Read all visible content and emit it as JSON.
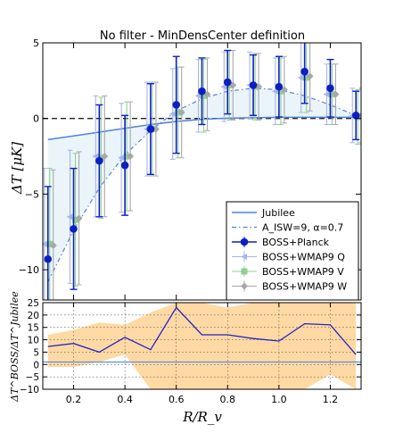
{
  "chart_data": [
    {
      "type": "line",
      "title": "No filter - MinDensCenter definition",
      "xlabel": "",
      "ylabel": "ΔT [μK]",
      "xlim": [
        0.08,
        1.32
      ],
      "ylim": [
        -12,
        5
      ],
      "xticks": [
        0.2,
        0.4,
        0.6,
        0.8,
        1.0,
        1.2
      ],
      "yticks": [
        -10,
        -5,
        0,
        5
      ],
      "ytick_labels": [
        "−10",
        "−5",
        "0",
        "5"
      ],
      "x": [
        0.1,
        0.2,
        0.3,
        0.4,
        0.5,
        0.6,
        0.7,
        0.8,
        0.9,
        1.0,
        1.1,
        1.2,
        1.3
      ],
      "series": [
        {
          "name": "Jubilee",
          "style": "solid line",
          "color": "#4f81e6",
          "values": [
            -1.4,
            -1.15,
            -0.9,
            -0.65,
            -0.4,
            -0.2,
            -0.05,
            0.02,
            0.05,
            0.08,
            0.08,
            0.08,
            0.08
          ]
        },
        {
          "name": "A_ISW=9, α=0.7",
          "style": "dash-dot line",
          "color": "#5a80d8",
          "values": [
            -10.8,
            -7.4,
            -4.6,
            -2.4,
            -0.8,
            0.5,
            1.3,
            1.8,
            2.0,
            1.9,
            1.5,
            0.9,
            0.2
          ]
        },
        {
          "name": "BOSS+Planck",
          "style": "filled circles with error bars",
          "color": "#0b1fc4",
          "values": [
            -9.3,
            -7.3,
            -2.8,
            -3.1,
            -0.7,
            0.9,
            1.8,
            2.4,
            2.2,
            2.1,
            3.1,
            2.0,
            0.2
          ],
          "errors": [
            4.8,
            4.0,
            3.7,
            3.3,
            3.0,
            3.2,
            2.2,
            2.1,
            2.0,
            2.0,
            2.1,
            1.9,
            1.6
          ]
        },
        {
          "name": "BOSS+WMAP9 Q",
          "style": "faint markers with error bars",
          "color": "#a7b4ee",
          "values": [
            -8.3,
            -6.5,
            -2.5,
            -2.6,
            -0.7,
            0.3,
            1.5,
            2.1,
            2.2,
            1.8,
            2.7,
            1.6,
            0.2
          ],
          "errors": [
            5.0,
            4.4,
            4.0,
            3.6,
            3.1,
            3.0,
            2.4,
            2.3,
            2.2,
            2.2,
            2.3,
            2.0,
            1.8
          ]
        },
        {
          "name": "BOSS+WMAP9 V",
          "style": "faint square markers with error bars",
          "color": "#8fcf8f",
          "values": [
            -8.3,
            -6.7,
            -2.6,
            -2.5,
            -0.7,
            0.4,
            1.5,
            2.2,
            2.1,
            1.8,
            2.7,
            1.6,
            0.1
          ],
          "errors": [
            5.0,
            4.4,
            4.0,
            3.6,
            3.1,
            3.0,
            2.4,
            2.3,
            2.2,
            2.2,
            2.3,
            2.0,
            1.8
          ]
        },
        {
          "name": "BOSS+WMAP9 W",
          "style": "faint diamond markers with error bars",
          "color": "#a8a8a8",
          "values": [
            -8.4,
            -6.6,
            -2.5,
            -2.5,
            -0.7,
            0.4,
            1.6,
            2.2,
            2.1,
            1.9,
            2.8,
            1.6,
            0.2
          ],
          "errors": [
            5.0,
            4.4,
            4.0,
            3.6,
            3.1,
            3.0,
            2.4,
            2.3,
            2.2,
            2.2,
            2.3,
            2.0,
            1.8
          ]
        }
      ],
      "legend_position": "lower-right",
      "legend_labels": [
        "Jubilee",
        "A_ISW=9, α=0.7",
        "BOSS+Planck",
        "BOSS+WMAP9 Q",
        "BOSS+WMAP9 V",
        "BOSS+WMAP9 W"
      ],
      "grid": false
    },
    {
      "type": "line",
      "title": "",
      "xlabel": "R/R_v",
      "ylabel": "ΔT^BOSS/ΔT^Jubilee",
      "xlim": [
        0.08,
        1.32
      ],
      "ylim": [
        -10,
        25
      ],
      "xticks": [
        0.2,
        0.4,
        0.6,
        0.8,
        1.0,
        1.2
      ],
      "xtick_labels": [
        "0.2",
        "0.4",
        "0.6",
        "0.8",
        "1.0",
        "1.2"
      ],
      "yticks": [
        -10,
        -5,
        0,
        5,
        10,
        15,
        20,
        25
      ],
      "ytick_labels": [
        "−10",
        "−5",
        "0",
        "5",
        "10",
        "15",
        "20",
        "25"
      ],
      "x": [
        0.1,
        0.2,
        0.3,
        0.4,
        0.5,
        0.6,
        0.7,
        0.8,
        0.9,
        1.0,
        1.1,
        1.2,
        1.3
      ],
      "series": [
        {
          "name": "ratio",
          "color": "#2323c8",
          "values": [
            7.3,
            8.5,
            5.0,
            11.0,
            6.0,
            23.0,
            12.0,
            12.0,
            10.5,
            9.5,
            16.5,
            16.0,
            4.0
          ]
        }
      ],
      "band": {
        "color": "#ffd9a3",
        "upper": [
          12,
          14,
          17,
          16,
          21,
          25,
          25,
          23,
          25,
          25,
          25,
          25,
          25
        ],
        "lower": [
          -1,
          -1,
          1,
          4,
          -10,
          -10,
          -10,
          -10,
          -10,
          -10,
          -10,
          -4,
          -10
        ]
      },
      "reference_line": {
        "y": 1,
        "color": "#5a8ee8"
      },
      "grid": true
    }
  ]
}
